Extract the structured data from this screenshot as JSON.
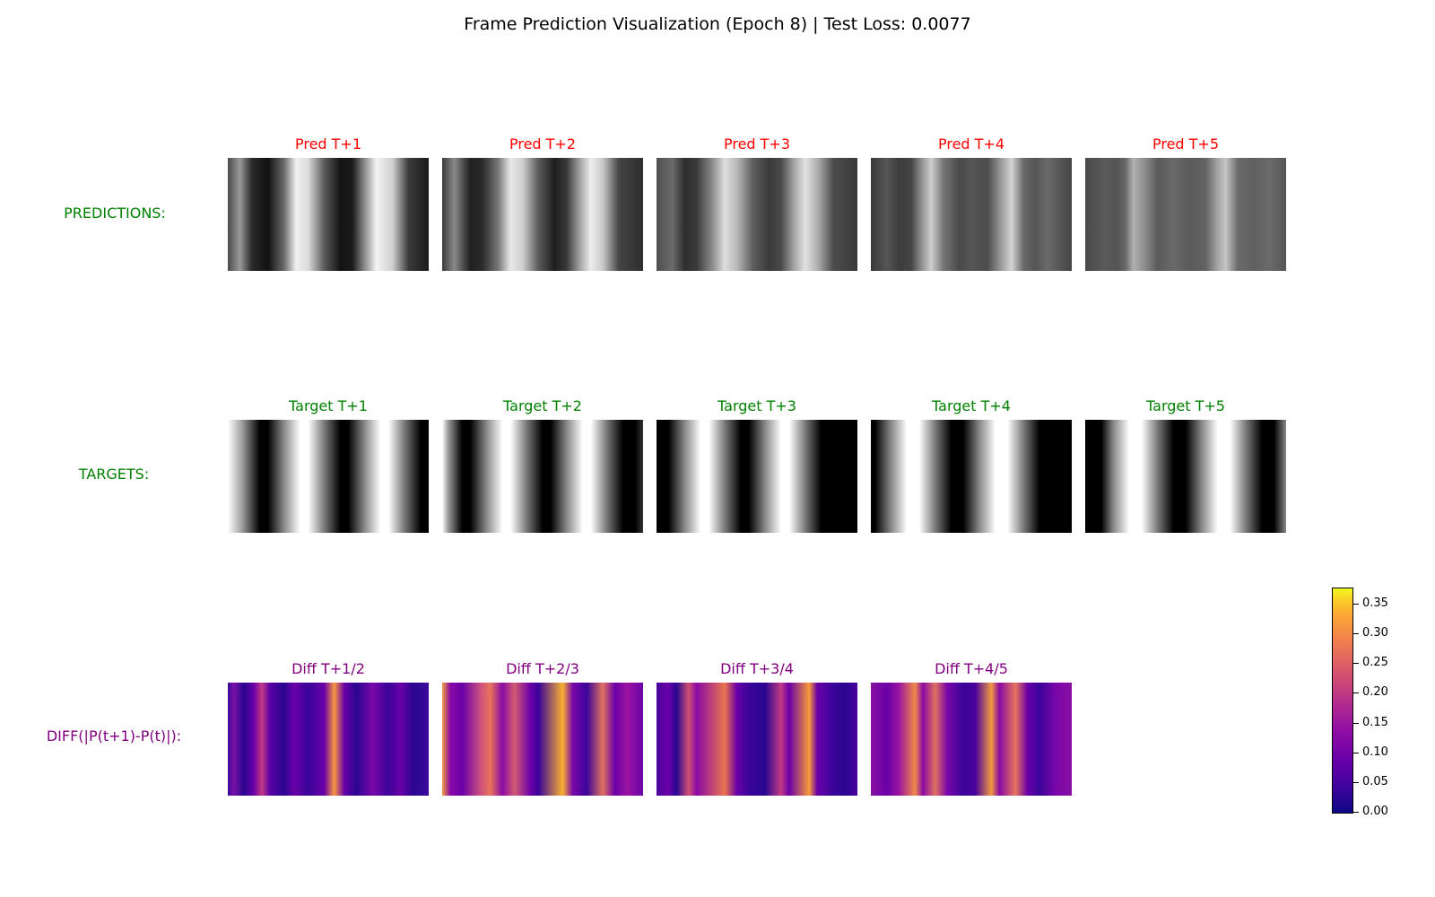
{
  "title": "Frame Prediction Visualization (Epoch 8) | Test Loss: 0.0077",
  "rows": {
    "predictions": {
      "label": "PREDICTIONS:",
      "color": "#008000",
      "title_color": "#ff0000",
      "panels": [
        "Pred T+1",
        "Pred T+2",
        "Pred T+3",
        "Pred T+4",
        "Pred T+5"
      ]
    },
    "targets": {
      "label": "TARGETS:",
      "color": "#008000",
      "title_color": "#008000",
      "panels": [
        "Target T+1",
        "Target T+2",
        "Target T+3",
        "Target T+4",
        "Target T+5"
      ]
    },
    "diffs": {
      "label": "DIFF(|P(t+1)-P(t)|):",
      "color": "#800080",
      "title_color": "#800080",
      "panels": [
        "Diff T+1/2",
        "Diff T+2/3",
        "Diff T+3/4",
        "Diff T+4/5"
      ]
    }
  },
  "chart_data": {
    "type": "heatmap",
    "title": "Frame Prediction Visualization (Epoch 8) | Test Loss: 0.0077",
    "colormap": "plasma",
    "colorbar": {
      "ticks": [
        "0.00",
        "0.05",
        "0.10",
        "0.15",
        "0.20",
        "0.25",
        "0.30",
        "0.35"
      ],
      "range": [
        0,
        0.38
      ]
    }
  }
}
